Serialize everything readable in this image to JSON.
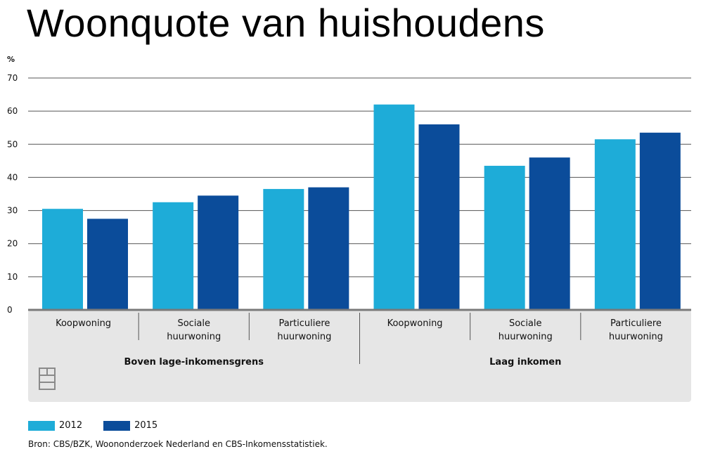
{
  "page": {
    "title": "Woonquote van huishoudens",
    "source": "Bron: CBS/BZK, Woononderzoek Nederland en CBS-Inkomensstatistiek."
  },
  "colors": {
    "series_2012": "#1eacd8",
    "series_2015": "#0b4c9a",
    "panel_bg": "#e6e6e6",
    "axis": "#7a7a7a",
    "grid": "#555555"
  },
  "chart_data": {
    "type": "bar",
    "title": "Woonquote van huishoudens",
    "ylabel": "%",
    "ylim": [
      0,
      70
    ],
    "yticks": [
      0,
      10,
      20,
      30,
      40,
      50,
      60,
      70
    ],
    "grid": true,
    "legend_position": "bottom-left",
    "categories": [
      [
        "Koopwoning"
      ],
      [
        "Sociale",
        "huurwoning"
      ],
      [
        "Particuliere",
        "huurwoning"
      ],
      [
        "Koopwoning"
      ],
      [
        "Sociale",
        "huurwoning"
      ],
      [
        "Particuliere",
        "huurwoning"
      ]
    ],
    "groups": [
      {
        "label": "Boven lage-inkomensgrens",
        "span": 3
      },
      {
        "label": "Laag inkomen",
        "span": 3
      }
    ],
    "series": [
      {
        "name": "2012",
        "values": [
          30.5,
          32.5,
          36.5,
          62,
          43.5,
          51.5
        ]
      },
      {
        "name": "2015",
        "values": [
          27.5,
          34.5,
          37,
          56,
          46,
          53.5
        ]
      }
    ]
  }
}
